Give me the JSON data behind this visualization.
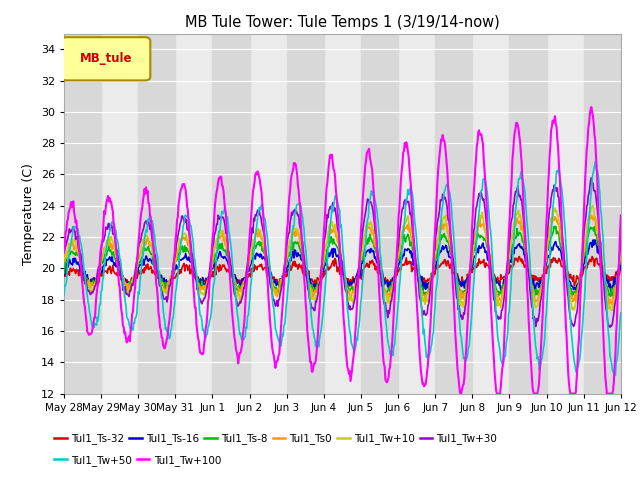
{
  "title": "MB Tule Tower: Tule Temps 1 (3/19/14-now)",
  "ylabel": "Temperature (C)",
  "ylim": [
    12,
    35
  ],
  "yticks": [
    12,
    14,
    16,
    18,
    20,
    22,
    24,
    26,
    28,
    30,
    32,
    34
  ],
  "x_labels": [
    "May 28",
    "May 29",
    "May 30",
    "May 31",
    "Jun 1",
    "Jun 2",
    "Jun 3",
    "Jun 4",
    "Jun 5",
    "Jun 6",
    "Jun 7",
    "Jun 8",
    "Jun 9",
    "Jun 10",
    "Jun 11",
    "Jun 12"
  ],
  "num_days": 15,
  "series_order": [
    "Tul1_Ts-32",
    "Tul1_Ts-16",
    "Tul1_Ts-8",
    "Tul1_Ts0",
    "Tul1_Tw+10",
    "Tul1_Tw+30",
    "Tul1_Tw+50",
    "Tul1_Tw+100"
  ],
  "series": {
    "Tul1_Ts-32": {
      "color": "#dd0000",
      "lw": 1.2,
      "base": 19.5,
      "amp": 0.4,
      "phase": 0.0,
      "amp_grow": 0.02
    },
    "Tul1_Ts-16": {
      "color": "#0000dd",
      "lw": 1.2,
      "base": 19.8,
      "amp": 0.7,
      "phase": 0.05,
      "amp_grow": 0.05
    },
    "Tul1_Ts-8": {
      "color": "#00bb00",
      "lw": 1.2,
      "base": 20.0,
      "amp": 1.0,
      "phase": 0.1,
      "amp_grow": 0.08
    },
    "Tul1_Ts0": {
      "color": "#ff9900",
      "lw": 1.2,
      "base": 20.2,
      "amp": 1.3,
      "phase": 0.12,
      "amp_grow": 0.1
    },
    "Tul1_Tw+10": {
      "color": "#cccc00",
      "lw": 1.2,
      "base": 20.2,
      "amp": 1.5,
      "phase": 0.12,
      "amp_grow": 0.12
    },
    "Tul1_Tw+30": {
      "color": "#9900cc",
      "lw": 1.2,
      "base": 20.5,
      "amp": 2.0,
      "phase": 0.2,
      "amp_grow": 0.18
    },
    "Tul1_Tw+50": {
      "color": "#00cccc",
      "lw": 1.2,
      "base": 19.5,
      "amp": 3.0,
      "phase": -0.4,
      "amp_grow": 0.25
    },
    "Tul1_Tw+100": {
      "color": "#ff00ff",
      "lw": 1.5,
      "base": 20.0,
      "amp": 4.0,
      "phase": 0.3,
      "amp_grow": 0.4
    }
  },
  "bg_color": "#ebebeb",
  "band_color": "#d8d8d8",
  "grid_color": "#ffffff",
  "legend_box_color": "#ffff99",
  "legend_box_border": "#aa8800",
  "legend_text": "MB_tule",
  "legend_text_color": "#cc0000"
}
